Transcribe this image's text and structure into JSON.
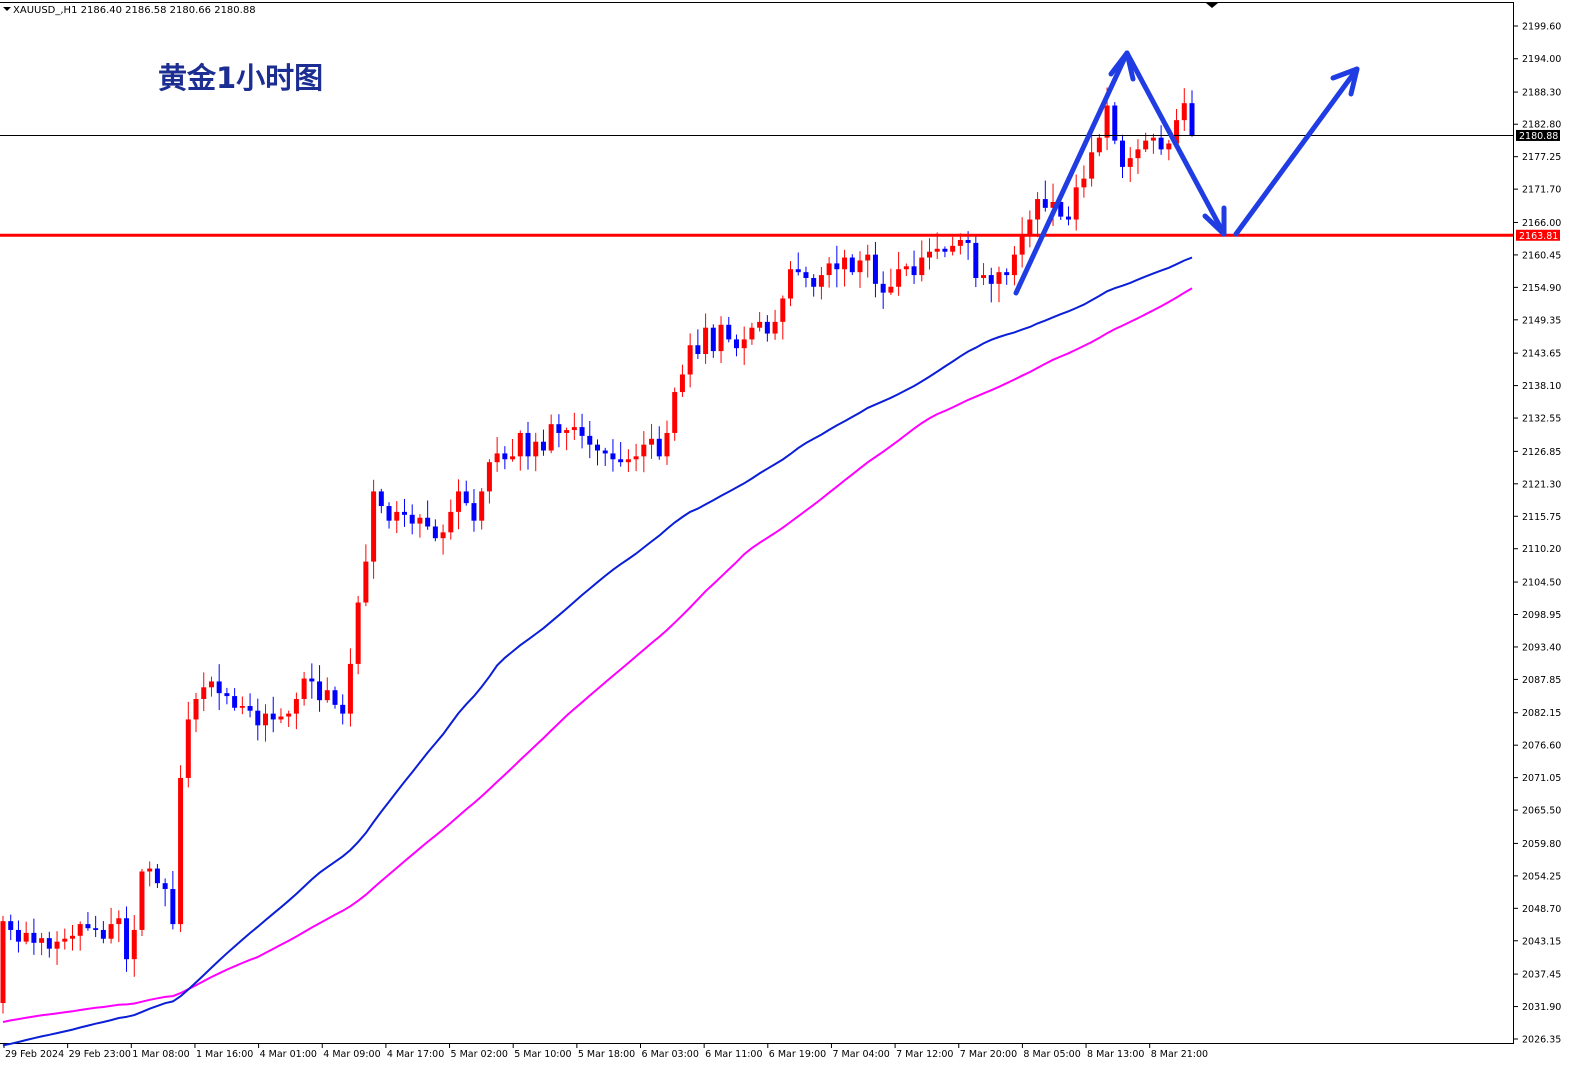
{
  "header": {
    "symbol_info": "XAUUSD_,H1  2186.40 2186.58 2180.66 2180.88",
    "title": "黄金1小时图"
  },
  "chart_data": {
    "type": "candlestick",
    "title": "黄金1小时图",
    "symbol": "XAUUSD_",
    "timeframe": "H1",
    "ohlc_current": {
      "open": 2186.4,
      "high": 2186.58,
      "low": 2180.66,
      "close": 2180.88
    },
    "y_range": [
      2026.35,
      2205.0
    ],
    "y_ticks": [
      2199.6,
      2194.0,
      2188.3,
      2182.8,
      2177.25,
      2171.7,
      2166.0,
      2160.45,
      2154.9,
      2149.35,
      2143.65,
      2138.1,
      2132.55,
      2126.85,
      2121.3,
      2115.75,
      2110.2,
      2104.5,
      2098.95,
      2093.4,
      2087.85,
      2082.15,
      2076.6,
      2071.05,
      2065.5,
      2059.8,
      2054.25,
      2048.7,
      2043.15,
      2037.45,
      2031.9,
      2026.35
    ],
    "y_tick_labels": [
      "2199.60",
      "2194.00",
      "2188.30",
      "2182.80",
      "2177.25",
      "2171.70",
      "2166.00",
      "2160.45",
      "2154.90",
      "2149.35",
      "2143.65",
      "2138.10",
      "2132.55",
      "2126.85",
      "2121.30",
      "2115.75",
      "2110.20",
      "2104.50",
      "2098.95",
      "2093.40",
      "2087.85",
      "2082.15",
      "2076.60",
      "2071.05",
      "2065.50",
      "2059.80",
      "2054.25",
      "2048.70",
      "2043.15",
      "2037.45",
      "2031.90",
      "2026.35"
    ],
    "x_tick_labels": [
      "29 Feb 2024",
      "29 Feb 23:00",
      "1 Mar 08:00",
      "1 Mar 16:00",
      "4 Mar 01:00",
      "4 Mar 09:00",
      "4 Mar 17:00",
      "5 Mar 02:00",
      "5 Mar 10:00",
      "5 Mar 18:00",
      "6 Mar 03:00",
      "6 Mar 11:00",
      "6 Mar 19:00",
      "7 Mar 04:00",
      "7 Mar 12:00",
      "7 Mar 20:00",
      "8 Mar 05:00",
      "8 Mar 13:00",
      "8 Mar 21:00"
    ],
    "current_price": 2180.88,
    "current_price_label": "2180.88",
    "support_level": 2163.81,
    "support_label": "2163.81",
    "colors": {
      "bull": "#ff0000",
      "bear": "#0000ff",
      "ma_fast": "#0a1fd6",
      "ma_slow": "#ff00ff",
      "support": "#ff0000",
      "arrows": "#1f3de3",
      "grid": "#000000"
    },
    "closes": [
      2046.5,
      2045.0,
      2043.0,
      2044.5,
      2042.8,
      2043.6,
      2041.8,
      2043.0,
      2043.5,
      2044.0,
      2046.0,
      2045.3,
      2045.0,
      2043.5,
      2046.0,
      2047.0,
      2040.0,
      2045.0,
      2055.0,
      2055.5,
      2053.0,
      2052.0,
      2046.0,
      2071.0,
      2081.0,
      2084.5,
      2086.5,
      2087.5,
      2085.5,
      2085.0,
      2083.0,
      2083.3,
      2082.5,
      2080.0,
      2082.0,
      2081.0,
      2081.5,
      2082.0,
      2084.5,
      2088.0,
      2087.5,
      2084.3,
      2086.0,
      2083.5,
      2082.0,
      2090.5,
      2101.0,
      2108.0,
      2120.0,
      2117.5,
      2115.0,
      2116.5,
      2116.0,
      2114.5,
      2115.5,
      2114.0,
      2112.0,
      2113.0,
      2116.5,
      2120.0,
      2118.0,
      2115.0,
      2120.0,
      2125.0,
      2126.5,
      2125.5,
      2126.0,
      2130.0,
      2126.0,
      2128.5,
      2127.0,
      2131.5,
      2130.0,
      2130.5,
      2131.0,
      2129.5,
      2128.0,
      2127.0,
      2126.5,
      2125.5,
      2125.0,
      2125.5,
      2126.0,
      2128.0,
      2129.0,
      2126.0,
      2130.0,
      2137.0,
      2140.0,
      2145.0,
      2143.5,
      2148.0,
      2144.0,
      2148.5,
      2146.0,
      2144.5,
      2146.0,
      2148.0,
      2149.0,
      2147.0,
      2149.0,
      2153.0,
      2158.0,
      2157.5,
      2156.5,
      2155.0,
      2157.0,
      2159.0,
      2158.0,
      2160.0,
      2157.5,
      2159.5,
      2160.5,
      2155.5,
      2154.0,
      2155.0,
      2158.0,
      2158.5,
      2157.0,
      2160.0,
      2161.0,
      2161.5,
      2161.0,
      2162.0,
      2163.0,
      2162.5,
      2156.5,
      2157.0,
      2155.5,
      2157.5,
      2157.0,
      2160.5,
      2164.0,
      2166.5,
      2170.0,
      2168.5,
      2169.5,
      2167.0,
      2166.5,
      2172.0,
      2173.5,
      2178.0,
      2180.5,
      2186.0,
      2180.0,
      2175.5,
      2177.0,
      2178.5,
      2180.0,
      2180.5,
      2178.5,
      2179.5,
      2183.5,
      2186.4,
      2180.88
    ]
  }
}
